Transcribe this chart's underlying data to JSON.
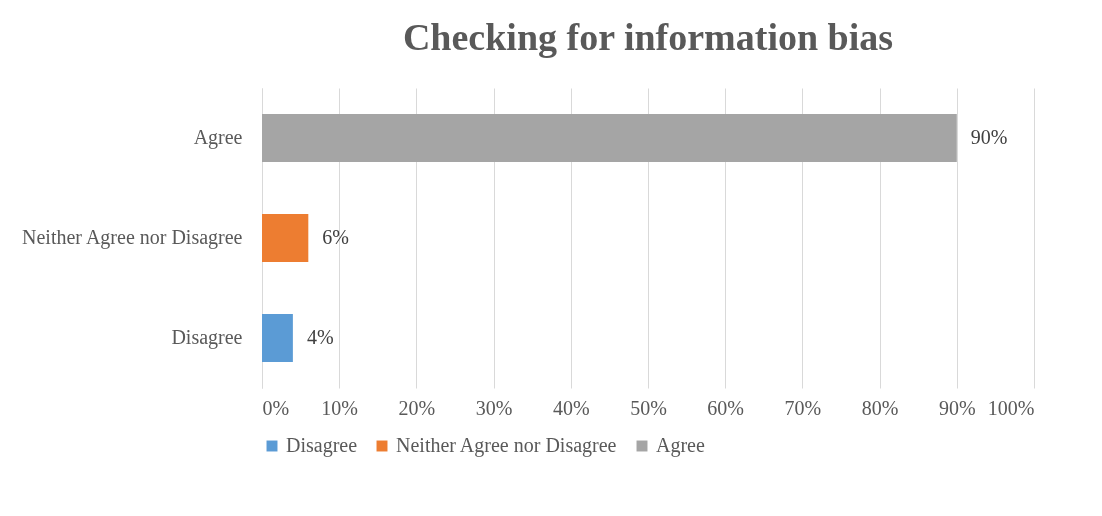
{
  "chart_data": {
    "type": "bar",
    "orientation": "horizontal",
    "title": "Checking for information bias",
    "categories": [
      "Agree",
      "Neither Agree nor Disagree",
      "Disagree"
    ],
    "series": [
      {
        "name": "Disagree",
        "color": "#5b9bd5",
        "values": [
          null,
          null,
          4
        ],
        "value_labels": [
          null,
          null,
          "4%"
        ]
      },
      {
        "name": "Neither Agree nor Disagree",
        "color": "#ed7d31",
        "values": [
          null,
          6,
          null
        ],
        "value_labels": [
          null,
          "6%",
          null
        ]
      },
      {
        "name": "Agree",
        "color": "#a5a5a5",
        "values": [
          90,
          null,
          null
        ],
        "value_labels": [
          "90%",
          null,
          null
        ]
      }
    ],
    "xlim": [
      0,
      100
    ],
    "xticks": [
      {
        "value": 0,
        "label": "0%"
      },
      {
        "value": 10,
        "label": "10%"
      },
      {
        "value": 20,
        "label": "20%"
      },
      {
        "value": 30,
        "label": "30%"
      },
      {
        "value": 40,
        "label": "40%"
      },
      {
        "value": 50,
        "label": "50%"
      },
      {
        "value": 60,
        "label": "60%"
      },
      {
        "value": 70,
        "label": "70%"
      },
      {
        "value": 80,
        "label": "80%"
      },
      {
        "value": 90,
        "label": "90%"
      },
      {
        "value": 100,
        "label": "100%"
      }
    ],
    "grid": "x",
    "legend": "bottom"
  }
}
